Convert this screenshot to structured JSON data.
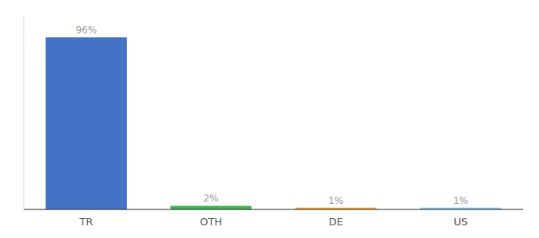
{
  "chart_data": {
    "type": "bar",
    "categories": [
      "TR",
      "OTH",
      "DE",
      "US"
    ],
    "values": [
      96,
      2,
      1,
      1
    ],
    "value_labels": [
      "96%",
      "2%",
      "1%",
      "1%"
    ],
    "colors": [
      "#4472c4",
      "#3cb54a",
      "#f5a623",
      "#7ec8e3"
    ],
    "ylim": [
      0,
      108
    ],
    "data_labels": true,
    "tick_labels": "x",
    "grid": false
  }
}
